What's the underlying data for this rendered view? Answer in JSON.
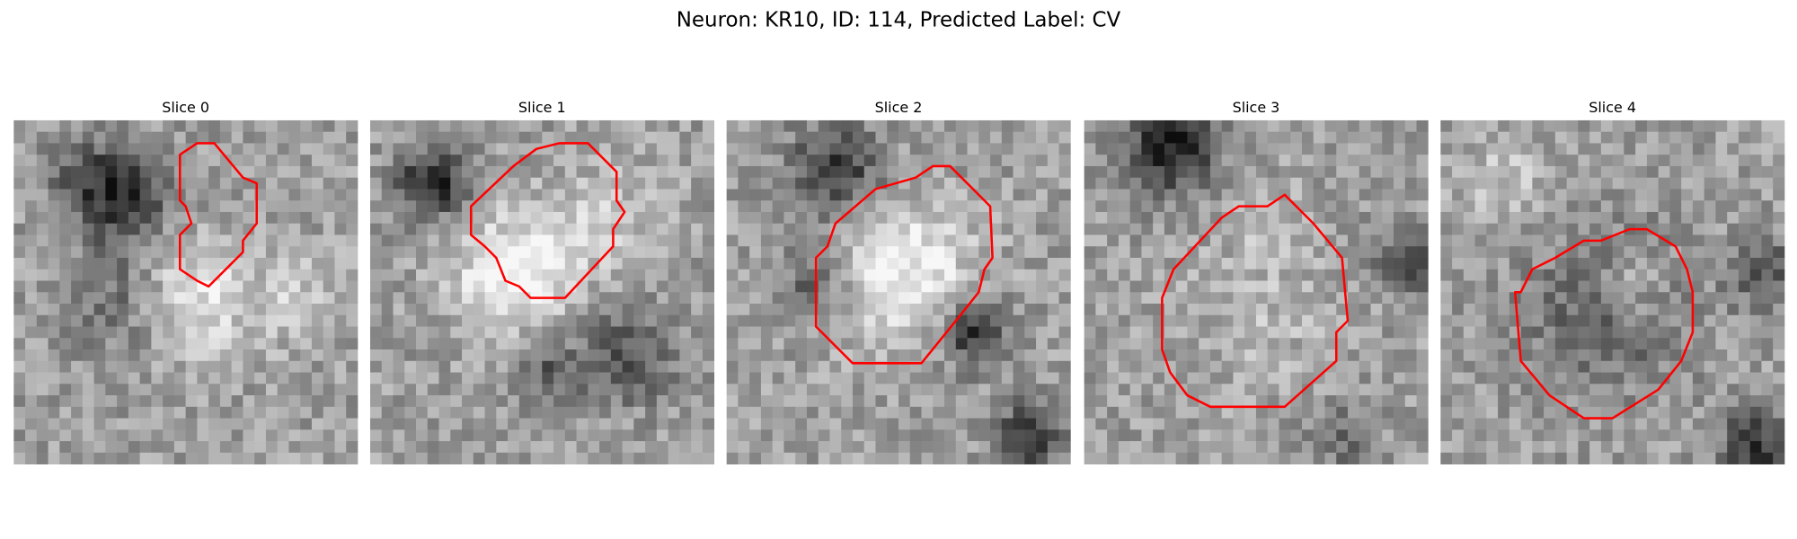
{
  "title": "Neuron: KR10, ID: 114, Predicted Label: CV",
  "panels": [
    {
      "title": "Slice 0"
    },
    {
      "title": "Slice 1"
    },
    {
      "title": "Slice 2"
    },
    {
      "title": "Slice 3"
    },
    {
      "title": "Slice 4"
    }
  ]
}
